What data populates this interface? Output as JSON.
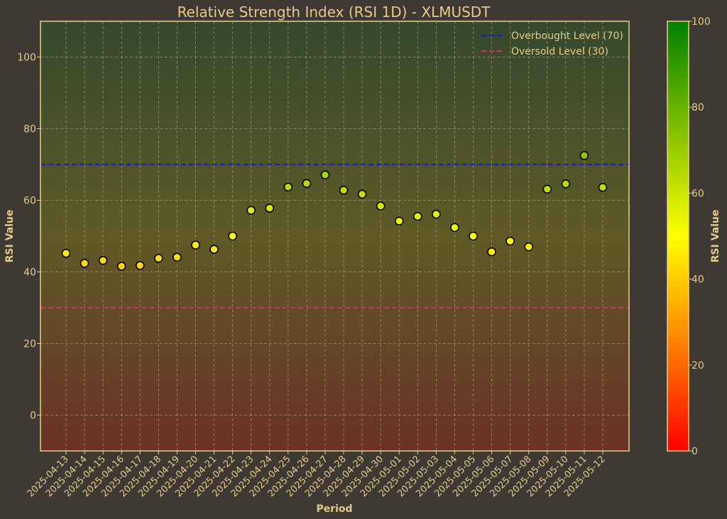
{
  "chart_data": {
    "type": "scatter",
    "title": "Relative Strength Index (RSI 1D) - XLMUSDT",
    "xlabel": "Period",
    "ylabel": "RSI Value",
    "ylim": [
      -10,
      110
    ],
    "yticks": [
      0,
      20,
      40,
      60,
      80,
      100
    ],
    "grid": true,
    "legend_position": "top-right",
    "categories": [
      "2025-04-13",
      "2025-04-14",
      "2025-04-15",
      "2025-04-16",
      "2025-04-17",
      "2025-04-18",
      "2025-04-19",
      "2025-04-20",
      "2025-04-21",
      "2025-04-22",
      "2025-04-23",
      "2025-04-24",
      "2025-04-25",
      "2025-04-26",
      "2025-04-27",
      "2025-04-28",
      "2025-04-29",
      "2025-04-30",
      "2025-05-01",
      "2025-05-02",
      "2025-05-03",
      "2025-05-04",
      "2025-05-05",
      "2025-05-06",
      "2025-05-07",
      "2025-05-08",
      "2025-05-09",
      "2025-05-10",
      "2025-05-11",
      "2025-05-12"
    ],
    "values": [
      45.2,
      42.4,
      43.2,
      41.6,
      41.8,
      43.8,
      44.1,
      47.5,
      46.3,
      50.0,
      57.2,
      57.8,
      63.7,
      64.7,
      67.1,
      62.8,
      61.7,
      58.4,
      54.2,
      55.5,
      56.1,
      52.4,
      50.0,
      45.6,
      48.6,
      47.0,
      63.1,
      64.6,
      72.5,
      63.6
    ],
    "reference_lines": [
      {
        "name": "Overbought Level (70)",
        "value": 70,
        "color": "#1a1adb"
      },
      {
        "name": "Oversold Level (30)",
        "value": 30,
        "color": "#d62a6a"
      }
    ],
    "colorbar": {
      "label": "RSI Value",
      "range": [
        0,
        100
      ],
      "ticks": [
        0,
        20,
        40,
        60,
        80,
        100
      ],
      "colors": [
        "#ff0000",
        "#ffff00",
        "#008000"
      ]
    },
    "colors": {
      "page_background": "#3e3a33",
      "text": "#e6c98c",
      "axis_frame": "#e6cf8a",
      "grid": "#b8a57a",
      "marker_edge": "#000000"
    }
  }
}
